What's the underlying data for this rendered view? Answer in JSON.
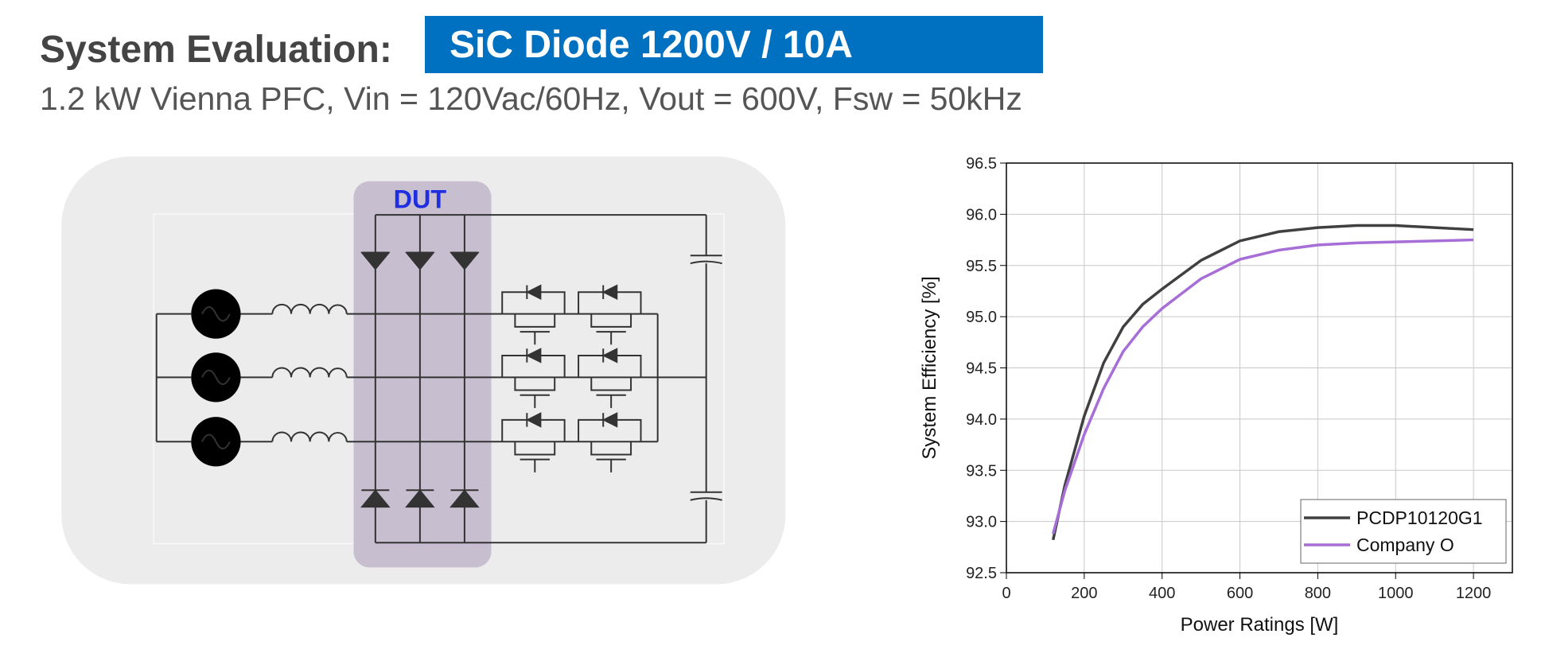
{
  "header": {
    "title": "System Evaluation:",
    "highlight": "SiC Diode 1200V / 10A",
    "subtitle": "1.2 kW Vienna PFC, Vin = 120Vac/60Hz, Vout = 600V, Fsw = 50kHz"
  },
  "diagram": {
    "label": "DUT"
  },
  "chart_data": {
    "type": "line",
    "x_label": "Power Ratings [W]",
    "y_label": "System Efficiency [%]",
    "x": [
      120,
      150,
      200,
      250,
      300,
      350,
      400,
      500,
      600,
      700,
      800,
      900,
      1000,
      1100,
      1200
    ],
    "series": [
      {
        "name": "PCDP10120G1",
        "color": "#404040",
        "values": [
          92.82,
          93.35,
          94.03,
          94.55,
          94.9,
          95.12,
          95.27,
          95.55,
          95.74,
          95.83,
          95.87,
          95.89,
          95.89,
          95.87,
          95.85
        ]
      },
      {
        "name": "Company O",
        "color": "#a66ed6",
        "values": [
          92.88,
          93.3,
          93.85,
          94.3,
          94.66,
          94.9,
          95.08,
          95.37,
          95.56,
          95.65,
          95.7,
          95.72,
          95.73,
          95.74,
          95.75
        ]
      }
    ],
    "xlim": [
      0,
      1300
    ],
    "xticks": [
      0,
      200,
      400,
      600,
      800,
      1000,
      1200
    ],
    "ylim": [
      92.5,
      96.5
    ],
    "yticks": [
      92.5,
      {
        "value": 93,
        "label": "93.0"
      },
      93.5,
      {
        "value": 94,
        "label": "94.0"
      },
      94.5,
      {
        "value": 95,
        "label": "95.0"
      },
      95.5,
      {
        "value": 96,
        "label": "96.0"
      },
      96.5
    ],
    "grid": true,
    "legend": "lower right"
  }
}
